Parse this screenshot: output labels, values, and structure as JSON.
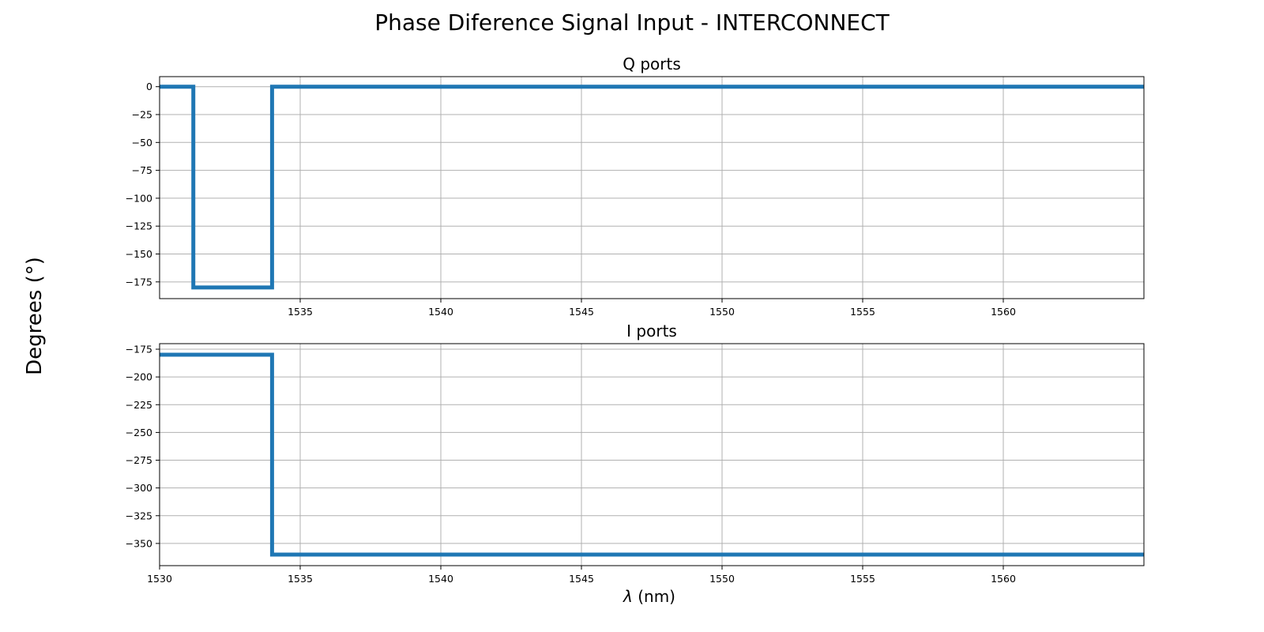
{
  "chart_data": {
    "type": "line",
    "title": "Phase Diference Signal Input - INTERCONNECT",
    "ylabel": "Degrees (°)",
    "xlabel_symbol": "λ",
    "xlabel_unit": " (nm)",
    "line_color": "#1f77b4",
    "grid": true,
    "subplots": [
      {
        "title": "Q ports",
        "xlim": [
          1530,
          1565
        ],
        "ylim": [
          -190,
          9
        ],
        "xticks": [
          1535,
          1540,
          1545,
          1550,
          1555,
          1560
        ],
        "yticks": [
          0,
          -25,
          -50,
          -75,
          -100,
          -125,
          -150,
          -175
        ],
        "series": [
          {
            "x": [
              1530,
              1531.2,
              1531.2,
              1534.0,
              1534.0,
              1565
            ],
            "y": [
              0,
              0,
              -180,
              -180,
              0,
              0
            ]
          }
        ]
      },
      {
        "title": "I ports",
        "xlim": [
          1530,
          1565
        ],
        "ylim": [
          -370,
          -170
        ],
        "xticks": [
          1530,
          1535,
          1540,
          1545,
          1550,
          1555,
          1560
        ],
        "yticks": [
          -175,
          -200,
          -225,
          -250,
          -275,
          -300,
          -325,
          -350
        ],
        "series": [
          {
            "x": [
              1530,
              1534.0,
              1534.0,
              1565
            ],
            "y": [
              -180,
              -180,
              -360,
              -360
            ]
          }
        ]
      }
    ]
  }
}
